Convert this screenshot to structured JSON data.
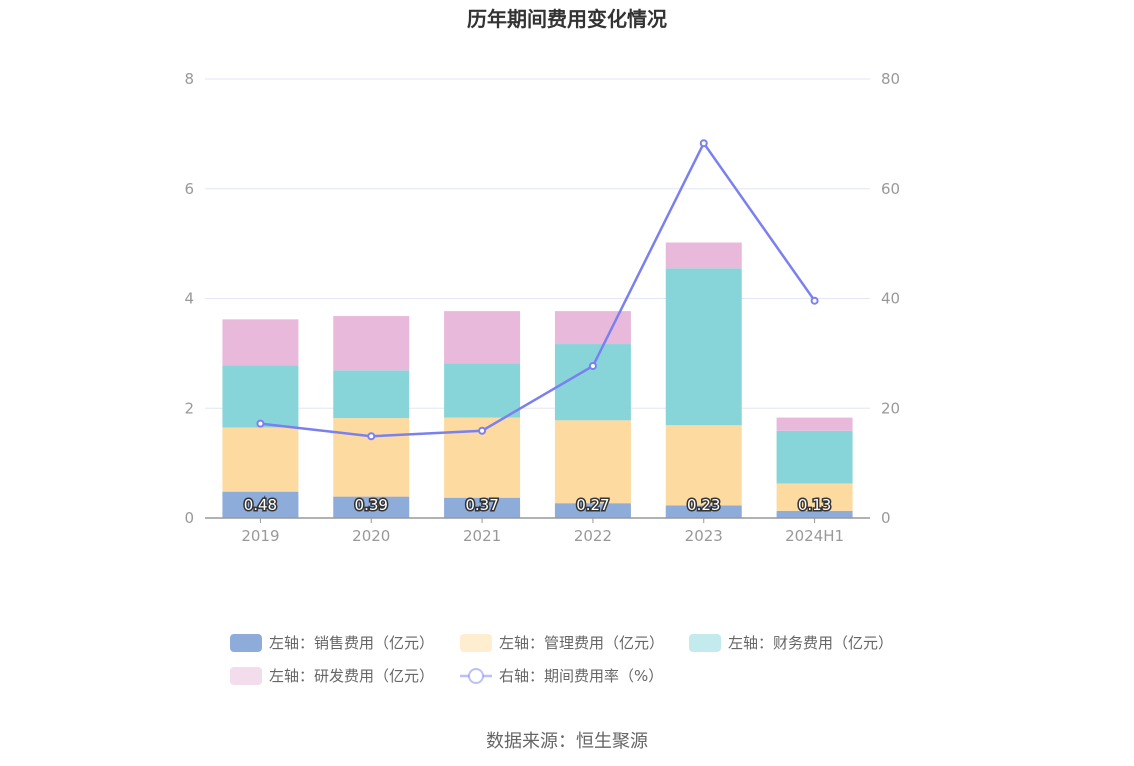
{
  "chart_data": {
    "type": "bar",
    "title": "历年期间费用变化情况",
    "categories": [
      "2019",
      "2020",
      "2021",
      "2022",
      "2023",
      "2024H1"
    ],
    "left_axis": {
      "ylim": [
        0,
        8
      ],
      "ticks": [
        "0",
        "2",
        "4",
        "6",
        "8"
      ]
    },
    "right_axis": {
      "ylim": [
        0,
        80
      ],
      "ticks": [
        "0",
        "20",
        "40",
        "60",
        "80"
      ]
    },
    "stacked": true,
    "series": [
      {
        "name": "左轴：销售费用（亿元）",
        "type": "bar",
        "axis": "left",
        "color": "#8eacda",
        "values": [
          0.48,
          0.39,
          0.37,
          0.27,
          0.23,
          0.13
        ],
        "labels": [
          "0.48",
          "0.39",
          "0.37",
          "0.27",
          "0.23",
          "0.13"
        ]
      },
      {
        "name": "左轴：管理费用（亿元）",
        "type": "bar",
        "axis": "left",
        "color": "#fddba0",
        "values": [
          1.17,
          1.43,
          1.46,
          1.51,
          1.46,
          0.5
        ]
      },
      {
        "name": "左轴：财务费用（亿元）",
        "type": "bar",
        "axis": "left",
        "color": "#88d5d9",
        "values": [
          1.13,
          0.87,
          0.99,
          1.39,
          2.86,
          0.96
        ]
      },
      {
        "name": "左轴：研发费用（亿元）",
        "type": "bar",
        "axis": "left",
        "color": "#e8b9da",
        "values": [
          0.84,
          0.99,
          0.95,
          0.6,
          0.47,
          0.24
        ]
      },
      {
        "name": "右轴：期间费用率（%）",
        "type": "line",
        "axis": "right",
        "color": "#7b80f0",
        "values": [
          17.2,
          14.9,
          15.9,
          27.7,
          68.3,
          39.6
        ]
      }
    ],
    "grid": true,
    "legend_position": "bottom"
  },
  "source_text": "数据来源：恒生聚源"
}
